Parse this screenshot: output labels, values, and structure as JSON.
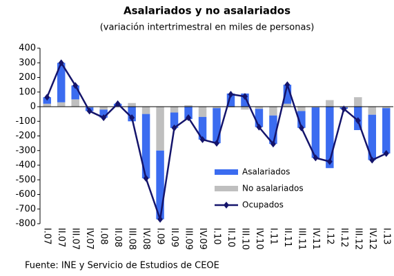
{
  "chart_data": {
    "type": "bar_line",
    "title": "Asalariados y no asalariados",
    "subtitle": "(variación intertrimestral en miles de personas)",
    "source": "Fuente: INE y Servicio de Estudios de CEOE",
    "categories": [
      "I.07",
      "II.07",
      "III.07",
      "IV.07",
      "I.08",
      "II.08",
      "III.08",
      "IV.08",
      "I.09",
      "II.09",
      "III.09",
      "IV.09",
      "I.10",
      "II.10",
      "III.10",
      "IV.10",
      "I.11",
      "II.11",
      "III.11",
      "IV.11",
      "I.12",
      "II.12",
      "III.12",
      "IV.12",
      "I.13"
    ],
    "series": [
      {
        "name": "Asalariados",
        "color": "#3b6cf0",
        "kind": "bar",
        "values": [
          45,
          270,
          95,
          -25,
          -55,
          15,
          -100,
          -440,
          -470,
          -105,
          -85,
          -155,
          -240,
          90,
          90,
          -125,
          -195,
          130,
          -115,
          -345,
          -420,
          -10,
          -160,
          -310,
          -310
        ]
      },
      {
        "name": "No asalariados",
        "color": "#bfbfbf",
        "kind": "bar",
        "values": [
          20,
          30,
          50,
          -5,
          -20,
          5,
          25,
          -50,
          -300,
          -40,
          10,
          -70,
          -10,
          -5,
          -20,
          -15,
          -60,
          20,
          -30,
          -5,
          45,
          -5,
          65,
          -55,
          -10
        ]
      },
      {
        "name": "Ocupados",
        "color": "#14146b",
        "kind": "line",
        "values": [
          65,
          300,
          145,
          -30,
          -75,
          20,
          -75,
          -490,
          -770,
          -145,
          -75,
          -225,
          -250,
          85,
          70,
          -140,
          -255,
          150,
          -145,
          -350,
          -375,
          -15,
          -95,
          -365,
          -320
        ]
      }
    ],
    "ylim": [
      -800,
      400
    ],
    "yticks": [
      -800,
      -700,
      -600,
      -500,
      -400,
      -300,
      -200,
      -100,
      0,
      100,
      200,
      300,
      400
    ],
    "legend": "lower right"
  }
}
